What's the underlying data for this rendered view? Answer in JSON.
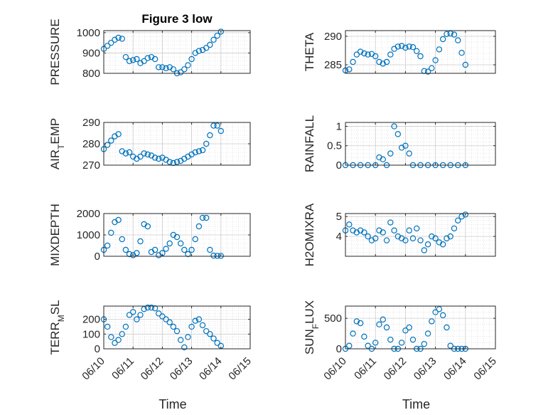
{
  "chart_data": [
    {
      "type": "scatter",
      "title": "Figure 3 low",
      "ylabel": [
        "PRESSURE"
      ],
      "xlabel": "",
      "grid": true,
      "ylim": [
        800,
        1010
      ],
      "yticks": [
        800,
        900,
        1000
      ],
      "ytick_labels": [
        "800",
        "900",
        "1000"
      ],
      "x": [
        "06/10",
        "06/10 03:00",
        "06/10 06:00",
        "06/10 09:00",
        "06/10 12:00",
        "06/10 15:00",
        "06/10 18:00",
        "06/10 21:00",
        "06/11",
        "06/11 03:00",
        "06/11 06:00",
        "06/11 09:00",
        "06/11 12:00",
        "06/11 15:00",
        "06/11 18:00",
        "06/11 21:00",
        "06/12",
        "06/12 03:00",
        "06/12 06:00",
        "06/12 09:00",
        "06/12 12:00",
        "06/12 15:00",
        "06/12 18:00",
        "06/12 21:00",
        "06/13",
        "06/13 03:00",
        "06/13 06:00",
        "06/13 09:00",
        "06/13 12:00",
        "06/13 15:00",
        "06/13 18:00",
        "06/13 21:00",
        "06/14"
      ],
      "y": [
        920,
        935,
        950,
        965,
        975,
        970,
        880,
        860,
        865,
        870,
        850,
        860,
        875,
        880,
        870,
        830,
        830,
        825,
        830,
        820,
        800,
        805,
        820,
        840,
        870,
        900,
        910,
        915,
        925,
        940,
        965,
        985,
        1005
      ],
      "series": [
        {
          "values": [
            920,
            935,
            950,
            965,
            975,
            970,
            880,
            860,
            865,
            870,
            850,
            860,
            875,
            880,
            870,
            830,
            830,
            825,
            830,
            820,
            800,
            805,
            820,
            840,
            870,
            900,
            910,
            915,
            925,
            940,
            965,
            985,
            1005
          ]
        }
      ]
    },
    {
      "type": "scatter",
      "title": "",
      "ylabel": [
        "THETA"
      ],
      "xlabel": "",
      "grid": true,
      "ylim": [
        283.5,
        291
      ],
      "yticks": [
        285,
        290
      ],
      "ytick_labels": [
        "285",
        "290"
      ],
      "x": [
        "06/10",
        "06/10 03:00",
        "06/10 06:00",
        "06/10 09:00",
        "06/10 12:00",
        "06/10 15:00",
        "06/10 18:00",
        "06/10 21:00",
        "06/11",
        "06/11 03:00",
        "06/11 06:00",
        "06/11 09:00",
        "06/11 12:00",
        "06/11 15:00",
        "06/11 18:00",
        "06/11 21:00",
        "06/12",
        "06/12 03:00",
        "06/12 06:00",
        "06/12 09:00",
        "06/12 12:00",
        "06/12 15:00",
        "06/12 18:00",
        "06/12 21:00",
        "06/13",
        "06/13 03:00",
        "06/13 06:00",
        "06/13 09:00",
        "06/13 12:00",
        "06/13 15:00",
        "06/13 18:00",
        "06/13 21:00",
        "06/14"
      ],
      "y": [
        284.0,
        284.2,
        285.5,
        286.8,
        287.3,
        287.0,
        286.8,
        286.9,
        286.5,
        285.5,
        285.2,
        285.5,
        286.8,
        287.8,
        288.2,
        288.3,
        288.0,
        288.2,
        288.1,
        287.4,
        286.5,
        283.9,
        283.8,
        284.4,
        285.8,
        287.7,
        289.5,
        290.4,
        290.5,
        290.3,
        289.3,
        287.1,
        285.0
      ],
      "series": [
        {
          "values": [
            284.0,
            284.2,
            285.5,
            286.8,
            287.3,
            287.0,
            286.8,
            286.9,
            286.5,
            285.5,
            285.2,
            285.5,
            286.8,
            287.8,
            288.2,
            288.3,
            288.0,
            288.2,
            288.1,
            287.4,
            286.5,
            283.9,
            283.8,
            284.4,
            285.8,
            287.7,
            289.5,
            290.4,
            290.5,
            290.3,
            289.3,
            287.1,
            285.0
          ]
        }
      ]
    },
    {
      "type": "scatter",
      "title": "",
      "ylabel": [
        "AIR",
        "T",
        "EMP"
      ],
      "xlabel": "",
      "grid": true,
      "ylim": [
        270,
        290
      ],
      "yticks": [
        270,
        280,
        290
      ],
      "ytick_labels": [
        "270",
        "280",
        "290"
      ],
      "x": [
        "06/10",
        "06/10 03:00",
        "06/10 06:00",
        "06/10 09:00",
        "06/10 12:00",
        "06/10 15:00",
        "06/10 18:00",
        "06/10 21:00",
        "06/11",
        "06/11 03:00",
        "06/11 06:00",
        "06/11 09:00",
        "06/11 12:00",
        "06/11 15:00",
        "06/11 18:00",
        "06/11 21:00",
        "06/12",
        "06/12 03:00",
        "06/12 06:00",
        "06/12 09:00",
        "06/12 12:00",
        "06/12 15:00",
        "06/12 18:00",
        "06/12 21:00",
        "06/13",
        "06/13 03:00",
        "06/13 06:00",
        "06/13 09:00",
        "06/13 12:00",
        "06/13 15:00",
        "06/13 18:00",
        "06/13 21:00",
        "06/14"
      ],
      "y": [
        277.5,
        279.5,
        281.5,
        283.5,
        284.5,
        276.5,
        275.5,
        276,
        274,
        273,
        274,
        275.5,
        275,
        274.5,
        273.5,
        273,
        273.5,
        272.5,
        271.5,
        271,
        271.5,
        272,
        273,
        274,
        275,
        276,
        276.5,
        277,
        280,
        284,
        288.5,
        288.5,
        286
      ],
      "series": [
        {
          "values": [
            277.5,
            279.5,
            281.5,
            283.5,
            284.5,
            276.5,
            275.5,
            276,
            274,
            273,
            274,
            275.5,
            275,
            274.5,
            273.5,
            273,
            273.5,
            272.5,
            271.5,
            271,
            271.5,
            272,
            273,
            274,
            275,
            276,
            276.5,
            277,
            280,
            284,
            288.5,
            288.5,
            286
          ]
        }
      ]
    },
    {
      "type": "scatter",
      "title": "",
      "ylabel": [
        "RAINFALL"
      ],
      "xlabel": "",
      "grid": true,
      "ylim": [
        0,
        1.1
      ],
      "yticks": [
        0,
        0.5,
        1
      ],
      "ytick_labels": [
        "0",
        "0.5",
        "1"
      ],
      "x": [
        "06/10",
        "06/10 06:00",
        "06/10 12:00",
        "06/10 18:00",
        "06/11",
        "06/11 03:00",
        "06/11 06:00",
        "06/11 09:00",
        "06/11 12:00",
        "06/11 15:00",
        "06/11 18:00",
        "06/11 21:00",
        "06/12",
        "06/12 03:00",
        "06/12 06:00",
        "06/12 12:00",
        "06/12 18:00",
        "06/13",
        "06/13 06:00",
        "06/13 12:00",
        "06/13 18:00",
        "06/14"
      ],
      "y": [
        0,
        0,
        0,
        0,
        0,
        0.2,
        0.15,
        0,
        0.3,
        1.0,
        0.8,
        0.45,
        0.5,
        0.3,
        0,
        0,
        0,
        0,
        0,
        0,
        0,
        0
      ],
      "series": [
        {
          "values": [
            0,
            0,
            0,
            0,
            0,
            0.2,
            0.15,
            0,
            0.3,
            1.0,
            0.8,
            0.45,
            0.5,
            0.3,
            0,
            0,
            0,
            0,
            0,
            0,
            0,
            0
          ]
        }
      ]
    },
    {
      "type": "scatter",
      "title": "",
      "ylabel": [
        "MIXDEPTH"
      ],
      "xlabel": "",
      "grid": true,
      "ylim": [
        0,
        2000
      ],
      "yticks": [
        0,
        1000,
        2000
      ],
      "ytick_labels": [
        "0",
        "1000",
        "2000"
      ],
      "x": [
        "06/10",
        "06/10 03:00",
        "06/10 06:00",
        "06/10 09:00",
        "06/10 12:00",
        "06/10 15:00",
        "06/10 18:00",
        "06/10 21:00",
        "06/11",
        "06/11 03:00",
        "06/11 06:00",
        "06/11 09:00",
        "06/11 12:00",
        "06/11 15:00",
        "06/11 18:00",
        "06/11 21:00",
        "06/12",
        "06/12 03:00",
        "06/12 06:00",
        "06/12 09:00",
        "06/12 12:00",
        "06/12 15:00",
        "06/12 18:00",
        "06/12 21:00",
        "06/13",
        "06/13 03:00",
        "06/13 06:00",
        "06/13 09:00",
        "06/13 12:00",
        "06/13 15:00",
        "06/13 18:00",
        "06/13 21:00",
        "06/14"
      ],
      "y": [
        300,
        500,
        1100,
        1600,
        1700,
        800,
        300,
        100,
        50,
        150,
        700,
        1500,
        1400,
        200,
        300,
        50,
        150,
        350,
        600,
        1000,
        900,
        600,
        300,
        100,
        300,
        800,
        1400,
        1800,
        1800,
        300,
        30,
        20,
        20
      ],
      "series": [
        {
          "values": [
            300,
            500,
            1100,
            1600,
            1700,
            800,
            300,
            100,
            50,
            150,
            700,
            1500,
            1400,
            200,
            300,
            50,
            150,
            350,
            600,
            1000,
            900,
            600,
            300,
            100,
            300,
            800,
            1400,
            1800,
            1800,
            300,
            30,
            20,
            20
          ]
        }
      ]
    },
    {
      "type": "scatter",
      "title": "",
      "ylabel": [
        "H2OMIXRA"
      ],
      "xlabel": "",
      "grid": true,
      "ylim": [
        3.0,
        5.15
      ],
      "yticks": [
        4,
        5
      ],
      "ytick_labels": [
        "4",
        "5"
      ],
      "x": [
        "06/10",
        "06/10 03:00",
        "06/10 06:00",
        "06/10 09:00",
        "06/10 12:00",
        "06/10 15:00",
        "06/10 18:00",
        "06/10 21:00",
        "06/11",
        "06/11 03:00",
        "06/11 06:00",
        "06/11 09:00",
        "06/11 12:00",
        "06/11 15:00",
        "06/11 18:00",
        "06/11 21:00",
        "06/12",
        "06/12 03:00",
        "06/12 06:00",
        "06/12 09:00",
        "06/12 12:00",
        "06/12 15:00",
        "06/12 18:00",
        "06/12 21:00",
        "06/13",
        "06/13 03:00",
        "06/13 06:00",
        "06/13 09:00",
        "06/13 12:00",
        "06/13 15:00",
        "06/13 18:00",
        "06/13 21:00",
        "06/14"
      ],
      "y": [
        4.3,
        4.6,
        4.3,
        4.2,
        4.3,
        4.2,
        4.0,
        3.8,
        3.9,
        4.3,
        4.2,
        3.8,
        4.7,
        4.3,
        4.0,
        3.9,
        3.8,
        4.3,
        3.9,
        4.4,
        3.8,
        3.3,
        3.6,
        4.0,
        3.9,
        3.7,
        3.6,
        3.9,
        4.0,
        4.4,
        4.8,
        5.0,
        5.1
      ],
      "series": [
        {
          "values": [
            4.3,
            4.6,
            4.3,
            4.2,
            4.3,
            4.2,
            4.0,
            3.8,
            3.9,
            4.3,
            4.2,
            3.8,
            4.7,
            4.3,
            4.0,
            3.9,
            3.8,
            4.3,
            3.9,
            4.4,
            3.8,
            3.3,
            3.6,
            4.0,
            3.9,
            3.7,
            3.6,
            3.9,
            4.0,
            4.4,
            4.8,
            5.0,
            5.1
          ]
        }
      ]
    },
    {
      "type": "scatter",
      "title": "",
      "ylabel": [
        "TERR",
        "M",
        "SL"
      ],
      "xlabel": "Time",
      "grid": true,
      "ylim": [
        0,
        290
      ],
      "yticks": [
        0,
        100,
        200
      ],
      "ytick_labels": [
        "0",
        "100",
        "200"
      ],
      "xticks": [
        "06/10",
        "06/11",
        "06/12",
        "06/13",
        "06/14",
        "06/15"
      ],
      "x": [
        "06/10",
        "06/10 03:00",
        "06/10 06:00",
        "06/10 09:00",
        "06/10 12:00",
        "06/10 15:00",
        "06/10 18:00",
        "06/10 21:00",
        "06/11",
        "06/11 03:00",
        "06/11 06:00",
        "06/11 09:00",
        "06/11 12:00",
        "06/11 15:00",
        "06/11 18:00",
        "06/11 21:00",
        "06/12",
        "06/12 03:00",
        "06/12 06:00",
        "06/12 09:00",
        "06/12 12:00",
        "06/12 15:00",
        "06/12 18:00",
        "06/12 21:00",
        "06/13",
        "06/13 03:00",
        "06/13 06:00",
        "06/13 09:00",
        "06/13 12:00",
        "06/13 15:00",
        "06/13 18:00",
        "06/13 21:00",
        "06/14"
      ],
      "y": [
        200,
        150,
        80,
        40,
        60,
        100,
        150,
        230,
        250,
        200,
        230,
        270,
        280,
        280,
        275,
        240,
        220,
        200,
        180,
        150,
        120,
        60,
        10,
        80,
        150,
        190,
        200,
        160,
        120,
        100,
        70,
        40,
        20
      ],
      "series": [
        {
          "values": [
            200,
            150,
            80,
            40,
            60,
            100,
            150,
            230,
            250,
            200,
            230,
            270,
            280,
            280,
            275,
            240,
            220,
            200,
            180,
            150,
            120,
            60,
            10,
            80,
            150,
            190,
            200,
            160,
            120,
            100,
            70,
            40,
            20
          ]
        }
      ]
    },
    {
      "type": "scatter",
      "title": "",
      "ylabel": [
        "SUN",
        "F",
        "LUX"
      ],
      "xlabel": "Time",
      "grid": true,
      "ylim": [
        0,
        700
      ],
      "yticks": [
        0,
        500
      ],
      "ytick_labels": [
        "0",
        "500"
      ],
      "xticks": [
        "06/10",
        "06/11",
        "06/12",
        "06/13",
        "06/14",
        "06/15"
      ],
      "x": [
        "06/10",
        "06/10 03:00",
        "06/10 06:00",
        "06/10 09:00",
        "06/10 12:00",
        "06/10 15:00",
        "06/10 18:00",
        "06/10 21:00",
        "06/11",
        "06/11 03:00",
        "06/11 06:00",
        "06/11 09:00",
        "06/11 12:00",
        "06/11 15:00",
        "06/11 18:00",
        "06/11 21:00",
        "06/12",
        "06/12 03:00",
        "06/12 06:00",
        "06/12 09:00",
        "06/12 12:00",
        "06/12 15:00",
        "06/12 18:00",
        "06/12 21:00",
        "06/13",
        "06/13 03:00",
        "06/13 06:00",
        "06/13 09:00",
        "06/13 12:00",
        "06/13 15:00",
        "06/13 18:00",
        "06/13 21:00",
        "06/14"
      ],
      "y": [
        0,
        50,
        250,
        450,
        420,
        200,
        50,
        0,
        100,
        400,
        480,
        350,
        150,
        0,
        0,
        100,
        300,
        350,
        150,
        0,
        0,
        80,
        250,
        450,
        600,
        650,
        550,
        350,
        50,
        0,
        0,
        0,
        0
      ],
      "series": [
        {
          "values": [
            0,
            50,
            250,
            450,
            420,
            200,
            50,
            0,
            100,
            400,
            480,
            350,
            150,
            0,
            0,
            100,
            300,
            350,
            150,
            0,
            0,
            80,
            250,
            450,
            600,
            650,
            550,
            350,
            50,
            0,
            0,
            0,
            0
          ]
        }
      ]
    }
  ],
  "colors": {
    "marker": "#0072BD",
    "axis": "#262626",
    "grid": "#d4d4d4"
  }
}
